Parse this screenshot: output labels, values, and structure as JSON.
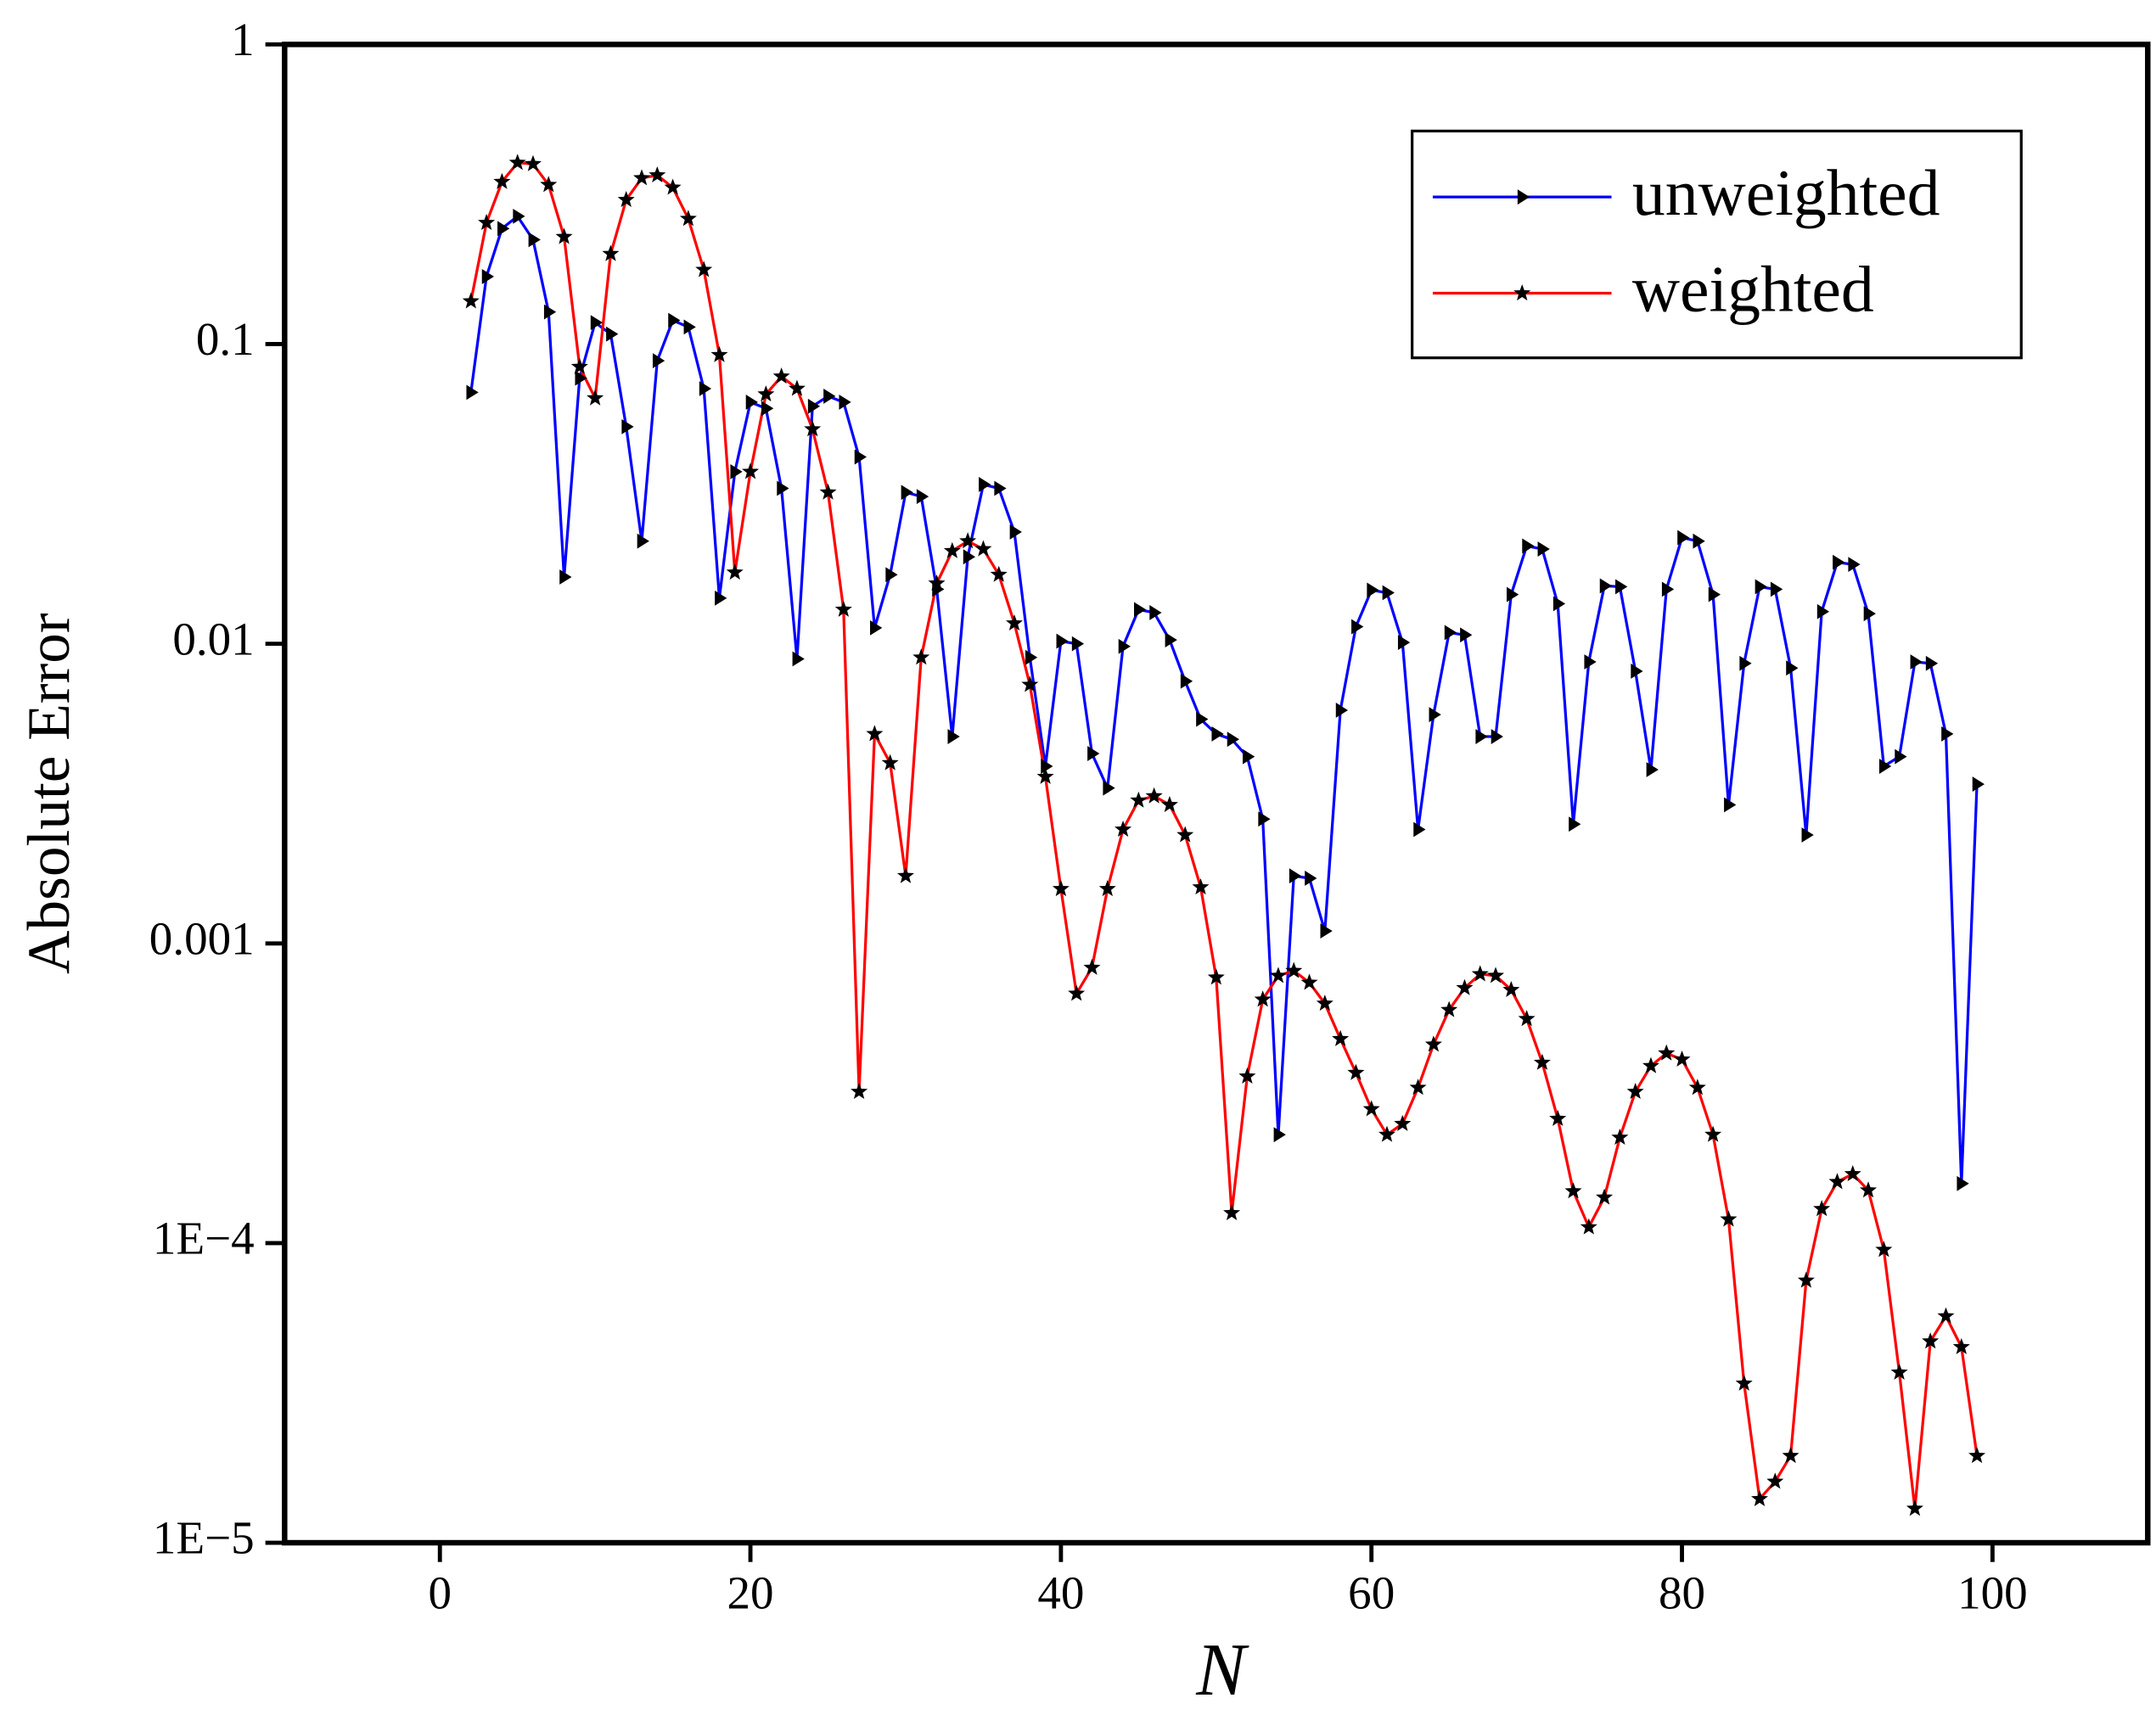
{
  "chart_data": {
    "type": "line",
    "xlabel": "N",
    "ylabel": "Absolute Error",
    "xlim": [
      -10,
      110
    ],
    "xticks": [
      0,
      20,
      40,
      60,
      80,
      100
    ],
    "ylim": [
      1e-05,
      1
    ],
    "log_y": true,
    "yticks": [
      1,
      0.1,
      0.01,
      0.001,
      {
        "value": 0.0001,
        "label": "1E−4"
      },
      {
        "value": 1e-05,
        "label": "1E−5"
      }
    ],
    "legend": "upper right",
    "x": [
      2,
      3,
      4,
      5,
      6,
      7,
      8,
      9,
      10,
      11,
      12,
      13,
      14,
      15,
      16,
      17,
      18,
      19,
      20,
      21,
      22,
      23,
      24,
      25,
      26,
      27,
      28,
      29,
      30,
      31,
      32,
      33,
      34,
      35,
      36,
      37,
      38,
      39,
      40,
      41,
      42,
      43,
      44,
      45,
      46,
      47,
      48,
      49,
      50,
      51,
      52,
      53,
      54,
      55,
      56,
      57,
      58,
      59,
      60,
      61,
      62,
      63,
      64,
      65,
      66,
      67,
      68,
      69,
      70,
      71,
      72,
      73,
      74,
      75,
      76,
      77,
      78,
      79,
      80,
      81,
      82,
      83,
      84,
      85,
      86,
      87,
      88,
      89,
      90,
      91,
      92,
      93,
      94,
      95,
      96,
      97,
      98,
      99
    ],
    "series": [
      {
        "name": "unweighted",
        "color": "#0000ff",
        "marker": "triangle",
        "values": [
          0.069,
          0.168,
          0.243,
          0.267,
          0.223,
          0.128,
          0.0167,
          0.077,
          0.118,
          0.108,
          0.053,
          0.022,
          0.088,
          0.12,
          0.114,
          0.071,
          0.0142,
          0.0375,
          0.064,
          0.061,
          0.033,
          0.0089,
          0.062,
          0.067,
          0.064,
          0.042,
          0.0113,
          0.017,
          0.032,
          0.031,
          0.0152,
          0.0049,
          0.0195,
          0.034,
          0.033,
          0.0236,
          0.009,
          0.0039,
          0.0102,
          0.01,
          0.0043,
          0.0033,
          0.0098,
          0.013,
          0.0127,
          0.0103,
          0.0075,
          0.0056,
          0.005,
          0.0048,
          0.0042,
          0.0026,
          0.00023,
          0.00168,
          0.00165,
          0.0011,
          0.006,
          0.0114,
          0.0151,
          0.0148,
          0.0101,
          0.0024,
          0.0058,
          0.0109,
          0.0107,
          0.0049,
          0.0049,
          0.0146,
          0.0212,
          0.0207,
          0.0136,
          0.0025,
          0.0087,
          0.0156,
          0.0155,
          0.0081,
          0.0038,
          0.0152,
          0.0226,
          0.022,
          0.0146,
          0.0029,
          0.0086,
          0.0155,
          0.0152,
          0.0083,
          0.0023,
          0.0128,
          0.0187,
          0.0184,
          0.0126,
          0.0039,
          0.0042,
          0.0087,
          0.0086,
          0.005,
          0.000158,
          0.0034
        ]
      },
      {
        "name": "weighted",
        "color": "#ff0000",
        "marker": "star",
        "values": [
          0.139,
          0.254,
          0.348,
          0.403,
          0.399,
          0.34,
          0.228,
          0.084,
          0.066,
          0.2,
          0.303,
          0.358,
          0.366,
          0.333,
          0.262,
          0.177,
          0.092,
          0.0173,
          0.0375,
          0.068,
          0.078,
          0.071,
          0.052,
          0.032,
          0.013,
          0.00032,
          0.005,
          0.004,
          0.00168,
          0.009,
          0.0159,
          0.0204,
          0.022,
          0.0207,
          0.017,
          0.0117,
          0.0073,
          0.0036,
          0.00152,
          0.00068,
          0.00083,
          0.00152,
          0.0024,
          0.003,
          0.0031,
          0.0029,
          0.0023,
          0.00154,
          0.00077,
          0.000126,
          0.00036,
          0.00065,
          0.00078,
          0.00081,
          0.00074,
          0.00063,
          0.00048,
          0.00037,
          0.00028,
          0.00023,
          0.00025,
          0.00033,
          0.00046,
          0.0006,
          0.00071,
          0.00079,
          0.00078,
          0.0007,
          0.00056,
          0.0004,
          0.00026,
          0.000149,
          0.000113,
          0.000142,
          0.000225,
          0.00032,
          0.00039,
          0.00043,
          0.00041,
          0.00033,
          0.00023,
          0.00012,
          3.4e-05,
          1.4e-05,
          1.6e-05,
          1.95e-05,
          7.5e-05,
          0.00013,
          0.00016,
          0.00017,
          0.00015,
          9.5e-05,
          3.7e-05,
          1.3e-05,
          4.7e-05,
          5.7e-05,
          4.5e-05,
          1.95e-05
        ]
      }
    ]
  }
}
